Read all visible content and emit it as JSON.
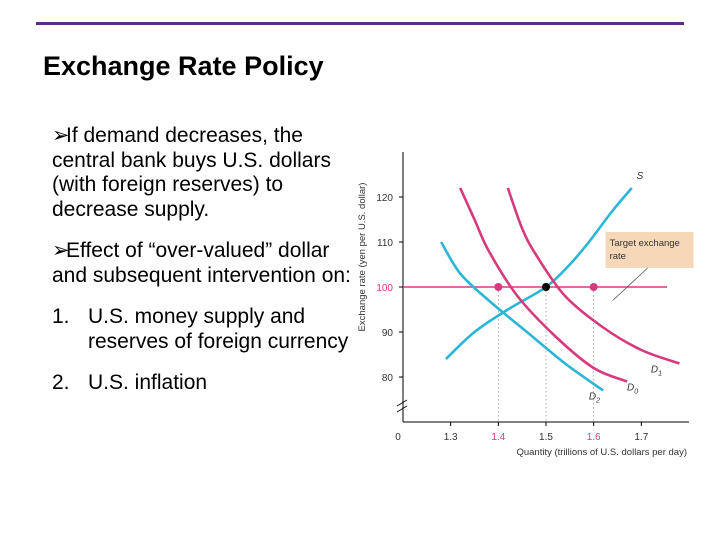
{
  "slide": {
    "title": "Exchange Rate Policy",
    "accent_color": "#5b2a84",
    "bullets": [
      "If demand decreases, the central bank buys U.S. dollars (with foreign reserves) to decrease supply.",
      "Effect of “over-valued” dollar and subsequent intervention on:"
    ],
    "numbered": [
      {
        "num": "1.",
        "text": "U.S. money supply and reserves of foreign currency"
      },
      {
        "num": "2.",
        "text": "U.S. inflation"
      }
    ],
    "bullet_icon": "arrow-bullet-icon"
  },
  "chart_data": {
    "type": "line",
    "ylabel": "Exchange rate (yen per U.S. dollar)",
    "xlabel": "Quantity (trillions of U.S. dollars per day)",
    "x_ticks": [
      {
        "value": 1.3,
        "label": "1.3",
        "highlight": false
      },
      {
        "value": 1.4,
        "label": "1.4",
        "highlight": true
      },
      {
        "value": 1.5,
        "label": "1.5",
        "highlight": false
      },
      {
        "value": 1.6,
        "label": "1.6",
        "highlight": true
      },
      {
        "value": 1.7,
        "label": "1.7",
        "highlight": false
      }
    ],
    "y_ticks": [
      {
        "value": 80,
        "label": "80",
        "highlight": false
      },
      {
        "value": 90,
        "label": "90",
        "highlight": false
      },
      {
        "value": 100,
        "label": "100",
        "highlight": true
      },
      {
        "value": 110,
        "label": "110",
        "highlight": false
      },
      {
        "value": 120,
        "label": "120",
        "highlight": false
      }
    ],
    "origin_label": "0",
    "xlim": [
      1.2,
      1.8
    ],
    "ylim": [
      70,
      130
    ],
    "target_rate": 100,
    "target_label": [
      "Target exchange",
      "rate"
    ],
    "series": [
      {
        "name": "S",
        "color": "#2bb5d6",
        "points": [
          [
            1.29,
            84
          ],
          [
            1.35,
            90
          ],
          [
            1.42,
            95
          ],
          [
            1.5,
            100
          ],
          [
            1.55,
            105
          ],
          [
            1.59,
            110
          ],
          [
            1.64,
            117
          ],
          [
            1.68,
            122
          ]
        ]
      },
      {
        "name": "D0",
        "color": "#d63a7c",
        "points": [
          [
            1.32,
            122
          ],
          [
            1.35,
            115
          ],
          [
            1.38,
            108
          ],
          [
            1.44,
            98
          ],
          [
            1.52,
            89
          ],
          [
            1.6,
            82
          ],
          [
            1.67,
            79
          ]
        ]
      },
      {
        "name": "D1",
        "color": "#d63a7c",
        "points": [
          [
            1.42,
            122
          ],
          [
            1.45,
            113
          ],
          [
            1.48,
            107
          ],
          [
            1.54,
            98
          ],
          [
            1.62,
            91
          ],
          [
            1.7,
            86
          ],
          [
            1.78,
            83
          ]
        ]
      },
      {
        "name": "D2",
        "color": "#2bb5d6",
        "points": [
          [
            1.28,
            110
          ],
          [
            1.32,
            103
          ],
          [
            1.38,
            97
          ],
          [
            1.46,
            90
          ],
          [
            1.54,
            83
          ],
          [
            1.62,
            77
          ]
        ]
      }
    ],
    "curve_labels": [
      {
        "text": "S",
        "x": 1.69,
        "y": 124
      },
      {
        "text": "D1",
        "x": 1.72,
        "y": 81
      },
      {
        "text": "D0",
        "x": 1.67,
        "y": 77
      },
      {
        "text": "D2",
        "x": 1.59,
        "y": 75
      }
    ],
    "points": [
      {
        "x": 1.4,
        "y": 100,
        "color": "#d63a7c"
      },
      {
        "x": 1.5,
        "y": 100,
        "color": "#000000"
      },
      {
        "x": 1.6,
        "y": 100,
        "color": "#d63a7c"
      }
    ],
    "guides": [
      1.4,
      1.5,
      1.6
    ],
    "target_line_color": "#d63a7c",
    "highlight_color": "#d63a7c"
  }
}
